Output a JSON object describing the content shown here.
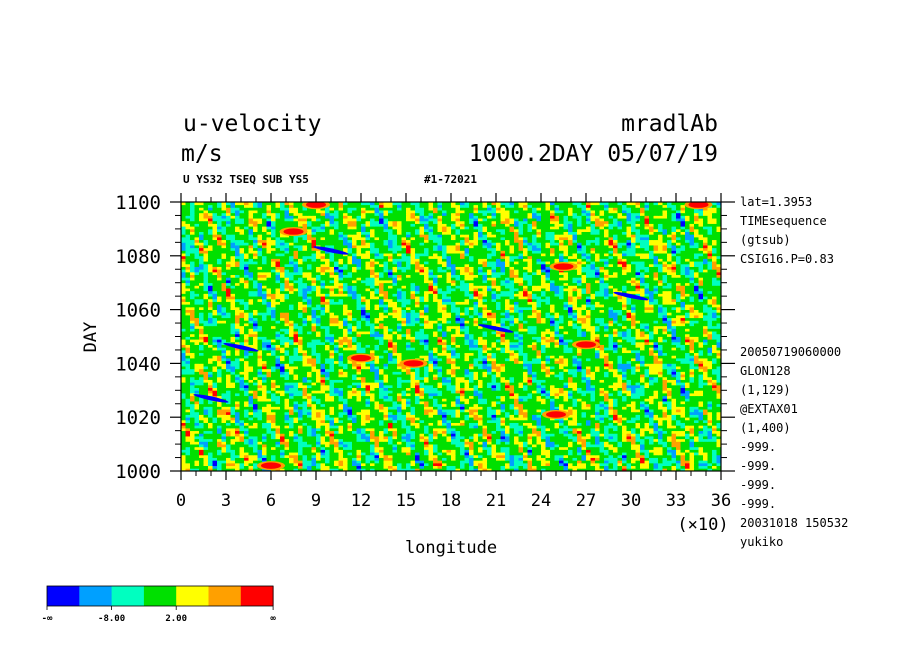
{
  "header": {
    "title_left": "u-velocity",
    "units": "m/s",
    "title_right": "mradlAb",
    "time_label": "1000.2DAY 05/07/19",
    "subtitle": "U YS32 TSEQ SUB YS5",
    "run_id": "#1-72021"
  },
  "side_info": {
    "top": [
      "lat=1.3953",
      "TIMEsequence",
      "(gtsub)",
      "CSIG16.P=0.83"
    ],
    "bottom": [
      "20050719060000",
      "GLON128",
      "(1,129)",
      "@EXTAX01",
      "(1,400)",
      "-999.",
      "-999.",
      "-999.",
      "-999.",
      "20031018 150532",
      "yukiko"
    ]
  },
  "colorbar": {
    "colors": [
      "#0000ff",
      "#00a0ff",
      "#00ffc0",
      "#00e000",
      "#ffff00",
      "#ffa000",
      "#ff0000"
    ],
    "labels": [
      "-∞",
      "-8.00",
      "2.00",
      "∞"
    ]
  },
  "chart_data": {
    "type": "heatmap",
    "title": "u-velocity",
    "xlabel": "longitude",
    "ylabel": "DAY",
    "x_multiplier": "(×10)",
    "xlim": [
      0,
      36
    ],
    "ylim": [
      1000,
      1100
    ],
    "x_ticks": [
      "0",
      "3",
      "6",
      "9",
      "12",
      "15",
      "18",
      "21",
      "24",
      "27",
      "30",
      "33",
      "36"
    ],
    "y_ticks": [
      "1000",
      "1020",
      "1040",
      "1060",
      "1080",
      "1100"
    ],
    "field_description": "time–longitude section of zonal velocity; dominant green/yellow values with streaks of red (strong eastward) and blue (strong westward) tilted toward increasing longitude with time",
    "color_levels": [
      "-∞",
      "-8.00",
      "2.00",
      "∞"
    ],
    "red_patches": [
      {
        "lon": 9.0,
        "day": 1099
      },
      {
        "lon": 7.5,
        "day": 1089
      },
      {
        "lon": 25.5,
        "day": 1076
      },
      {
        "lon": 15.5,
        "day": 1040
      },
      {
        "lon": 12.0,
        "day": 1042
      },
      {
        "lon": 25.0,
        "day": 1021
      },
      {
        "lon": 6.0,
        "day": 1002
      },
      {
        "lon": 34.5,
        "day": 1099
      },
      {
        "lon": 27.0,
        "day": 1047
      }
    ],
    "blue_streaks": [
      {
        "lon": 10.0,
        "day": 1082
      },
      {
        "lon": 4.0,
        "day": 1046
      },
      {
        "lon": 21.0,
        "day": 1053
      },
      {
        "lon": 30.0,
        "day": 1065
      },
      {
        "lon": 2.0,
        "day": 1027
      }
    ]
  }
}
